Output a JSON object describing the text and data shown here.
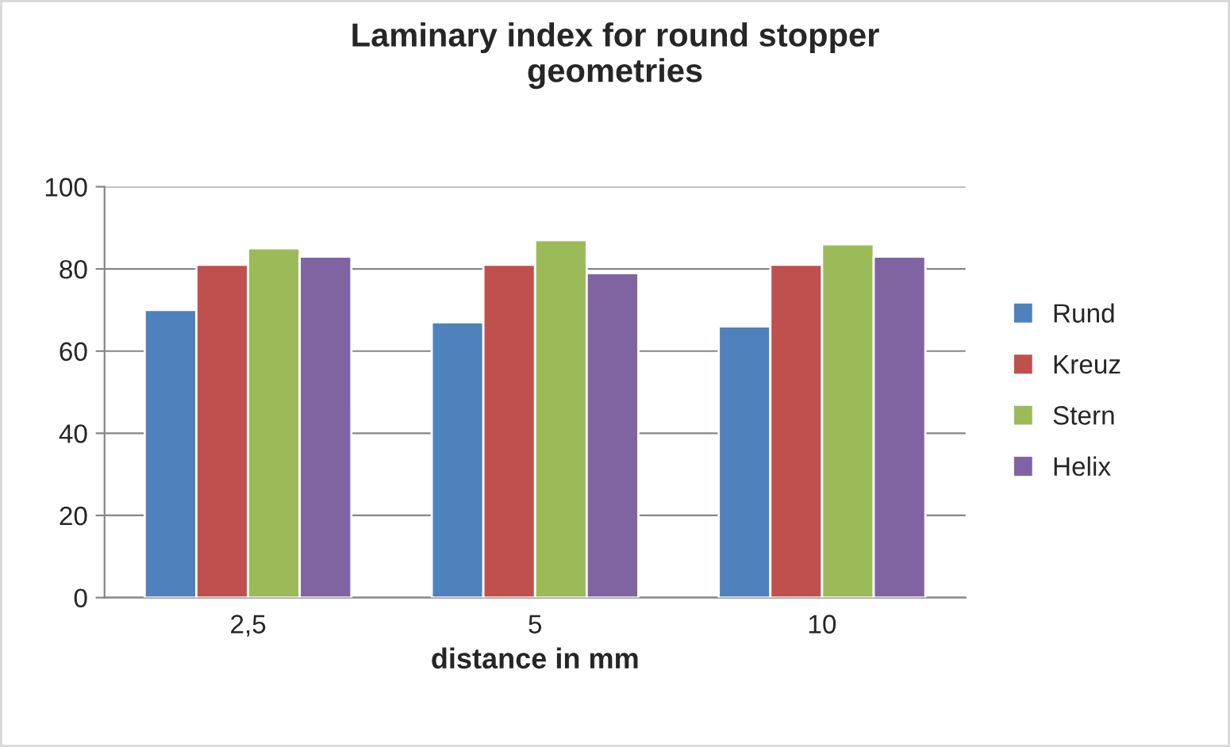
{
  "chart_data": {
    "type": "bar",
    "title": "Laminary index for round stopper\ngeometries",
    "xlabel": "distance in mm",
    "categories": [
      "2,5",
      "5",
      "10"
    ],
    "series": [
      {
        "name": "Rund",
        "color": "#4f81bd",
        "values": [
          70,
          67,
          66
        ]
      },
      {
        "name": "Kreuz",
        "color": "#c0504d",
        "values": [
          81,
          81,
          81
        ]
      },
      {
        "name": "Stern",
        "color": "#9bbb59",
        "values": [
          85,
          87,
          86
        ]
      },
      {
        "name": "Helix",
        "color": "#8064a2",
        "values": [
          83,
          79,
          83
        ]
      }
    ],
    "ylim": [
      0,
      100
    ],
    "yticks": [
      0,
      20,
      40,
      60,
      80,
      100
    ],
    "grid": "y",
    "legend": "right"
  }
}
